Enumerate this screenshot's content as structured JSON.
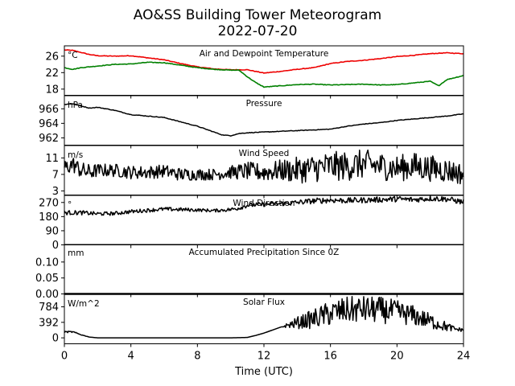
{
  "figure": {
    "title_line1": "AO&SS Building Tower Meteorogram",
    "title_line2": "2022-07-20",
    "xlabel": "Time (UTC)"
  },
  "colors": {
    "air_temp": "#ee0000",
    "dewpoint": "#008000",
    "black": "#000000"
  },
  "chart_data": [
    {
      "type": "line",
      "title": "Air and Dewpoint Temperature",
      "unit_label": "°C",
      "xlim": [
        0,
        24
      ],
      "xticks": [
        0,
        4,
        8,
        12,
        16,
        20,
        24
      ],
      "ylim": [
        16.5,
        28.5
      ],
      "yticks": [
        18,
        22,
        26
      ],
      "ytick_labels": [
        "18",
        "22",
        "26"
      ],
      "series": [
        {
          "color": "#ee0000",
          "x": [
            0,
            0.5,
            1,
            1.5,
            2,
            3,
            4,
            5,
            6,
            7,
            8,
            9,
            10,
            10.5,
            11,
            11.5,
            12,
            13,
            14,
            15,
            16,
            17,
            18,
            19,
            20,
            21,
            22,
            23,
            24
          ],
          "y": [
            27.5,
            27.4,
            26.9,
            26.4,
            26.1,
            26.0,
            26.1,
            25.6,
            25.1,
            24.2,
            23.4,
            22.9,
            22.7,
            22.7,
            22.7,
            22.3,
            21.9,
            22.3,
            22.8,
            23.2,
            24.2,
            24.7,
            25.0,
            25.4,
            25.9,
            26.2,
            26.6,
            26.8,
            26.6
          ]
        },
        {
          "color": "#008000",
          "x": [
            0,
            0.5,
            1,
            2,
            3,
            4,
            5,
            6,
            7,
            8,
            9,
            10,
            10.5,
            11,
            11.5,
            12,
            13,
            14,
            15,
            16,
            17,
            18,
            19,
            20,
            21,
            22,
            22.5,
            23,
            24
          ],
          "y": [
            23.2,
            22.8,
            23.2,
            23.6,
            24.0,
            24.1,
            24.5,
            24.4,
            23.8,
            23.2,
            22.8,
            22.6,
            22.6,
            21.0,
            19.6,
            18.5,
            18.8,
            19.1,
            19.2,
            19.0,
            19.1,
            19.2,
            19.0,
            19.1,
            19.5,
            19.9,
            18.8,
            20.3,
            21.3
          ]
        }
      ]
    },
    {
      "type": "line",
      "title": "Pressure",
      "unit_label": "hPa",
      "xlim": [
        0,
        24
      ],
      "ylim": [
        961.0,
        967.8
      ],
      "yticks": [
        962,
        964,
        966
      ],
      "ytick_labels": [
        "962",
        "964",
        "966"
      ],
      "series": [
        {
          "color": "#000000",
          "x": [
            0,
            0.5,
            1,
            1.5,
            2,
            3,
            4,
            5,
            6,
            7,
            8,
            9,
            9.5,
            10,
            10.5,
            11,
            12,
            13,
            14,
            15,
            16,
            17,
            18,
            19,
            20,
            21,
            22,
            23,
            24
          ],
          "y": [
            966.6,
            966.7,
            966.4,
            966.1,
            966.2,
            965.8,
            965.2,
            965.0,
            964.8,
            964.2,
            963.6,
            962.8,
            962.4,
            962.3,
            962.6,
            962.7,
            962.8,
            962.9,
            963.0,
            963.1,
            963.2,
            963.6,
            963.9,
            964.1,
            964.4,
            964.6,
            964.8,
            965.0,
            965.3
          ]
        }
      ]
    },
    {
      "type": "line",
      "title": "Wind Speed",
      "unit_label": "m/s",
      "xlim": [
        0,
        24
      ],
      "ylim": [
        2,
        14
      ],
      "yticks": [
        3,
        7,
        11
      ],
      "ytick_labels": [
        "3",
        "7",
        "11"
      ],
      "series": [
        {
          "color": "#000000",
          "x": [
            0,
            0.5,
            1,
            1.5,
            2,
            3,
            4,
            5,
            6,
            7,
            8,
            9,
            10,
            11,
            12,
            13,
            14,
            15,
            16,
            17,
            18,
            19,
            20,
            21,
            22,
            23,
            24
          ],
          "y": [
            8.5,
            9.5,
            8.0,
            7.5,
            8.0,
            8.0,
            7.5,
            7.5,
            7.8,
            7.0,
            7.0,
            7.0,
            7.5,
            7.8,
            7.5,
            8.0,
            8.0,
            8.5,
            9.0,
            9.0,
            9.5,
            9.0,
            8.5,
            9.0,
            8.5,
            8.0,
            7.0
          ],
          "noise": [
            2.0,
            2.0,
            2.0,
            2.0,
            1.6,
            1.6,
            1.6,
            1.6,
            1.6,
            1.6,
            1.4,
            1.4,
            1.6,
            2.2,
            2.2,
            2.6,
            3.2,
            3.4,
            3.6,
            3.6,
            3.6,
            3.4,
            3.2,
            3.4,
            3.2,
            3.0,
            2.6
          ]
        }
      ]
    },
    {
      "type": "line",
      "title": "Wind Direction",
      "unit_label": "°",
      "xlim": [
        0,
        24
      ],
      "ylim": [
        0,
        315
      ],
      "yticks": [
        0,
        90,
        180,
        270
      ],
      "ytick_labels": [
        "0",
        "90",
        "180",
        "270"
      ],
      "series": [
        {
          "color": "#000000",
          "x": [
            0,
            1,
            2,
            3,
            4,
            5,
            6,
            7,
            8,
            9,
            10,
            10.5,
            11,
            12,
            13,
            14,
            15,
            16,
            17,
            18,
            19,
            20,
            21,
            22,
            23,
            24
          ],
          "y": [
            205,
            205,
            198,
            200,
            212,
            220,
            228,
            225,
            222,
            218,
            225,
            235,
            252,
            258,
            262,
            270,
            280,
            285,
            282,
            285,
            288,
            292,
            288,
            296,
            292,
            272
          ],
          "noise": [
            14,
            14,
            12,
            12,
            12,
            12,
            12,
            12,
            10,
            10,
            12,
            14,
            14,
            14,
            14,
            16,
            18,
            18,
            18,
            18,
            18,
            18,
            18,
            18,
            18,
            18
          ]
        }
      ]
    },
    {
      "type": "line",
      "title": "Accumulated Precipitation Since 0Z",
      "unit_label": "mm",
      "xlim": [
        0,
        24
      ],
      "ylim": [
        0,
        0.155
      ],
      "yticks": [
        0.0,
        0.05,
        0.1
      ],
      "ytick_labels": [
        "0.00",
        "0.05",
        "0.10"
      ],
      "series": [
        {
          "color": "#000000",
          "x": [
            0,
            24
          ],
          "y": [
            0,
            0
          ]
        }
      ]
    },
    {
      "type": "line",
      "title": "Solar Flux",
      "unit_label": "W/m^2",
      "xlim": [
        0,
        24
      ],
      "ylim": [
        -150,
        1100
      ],
      "yticks": [
        0,
        392,
        784
      ],
      "ytick_labels": [
        "0",
        "392",
        "784"
      ],
      "series": [
        {
          "color": "#000000",
          "x": [
            0,
            0.5,
            1,
            1.5,
            2,
            3,
            4,
            5,
            6,
            7,
            8,
            9,
            10,
            11,
            11.5,
            12,
            13,
            14,
            15,
            16,
            17,
            18,
            19,
            20,
            21,
            22,
            23,
            23.5,
            24
          ],
          "y": [
            150,
            150,
            80,
            20,
            0,
            0,
            0,
            0,
            0,
            0,
            0,
            0,
            0,
            10,
            60,
            120,
            270,
            380,
            480,
            620,
            700,
            720,
            700,
            650,
            560,
            420,
            280,
            220,
            200
          ],
          "noise": [
            20,
            20,
            10,
            0,
            0,
            0,
            0,
            0,
            0,
            0,
            0,
            0,
            0,
            0,
            0,
            0,
            0,
            150,
            250,
            320,
            340,
            340,
            340,
            300,
            260,
            200,
            120,
            60,
            40
          ]
        }
      ]
    }
  ]
}
